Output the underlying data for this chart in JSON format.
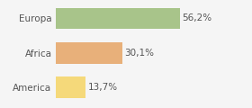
{
  "categories": [
    "America",
    "Africa",
    "Europa"
  ],
  "values": [
    13.7,
    30.1,
    56.2
  ],
  "bar_colors": [
    "#f5d97a",
    "#e8b07a",
    "#a8c48a"
  ],
  "labels": [
    "13,7%",
    "30,1%",
    "56,2%"
  ],
  "xlim": [
    0,
    75
  ],
  "background_color": "#f5f5f5",
  "bar_height": 0.62,
  "label_fontsize": 7.5,
  "ytick_fontsize": 7.5,
  "text_color": "#555555"
}
